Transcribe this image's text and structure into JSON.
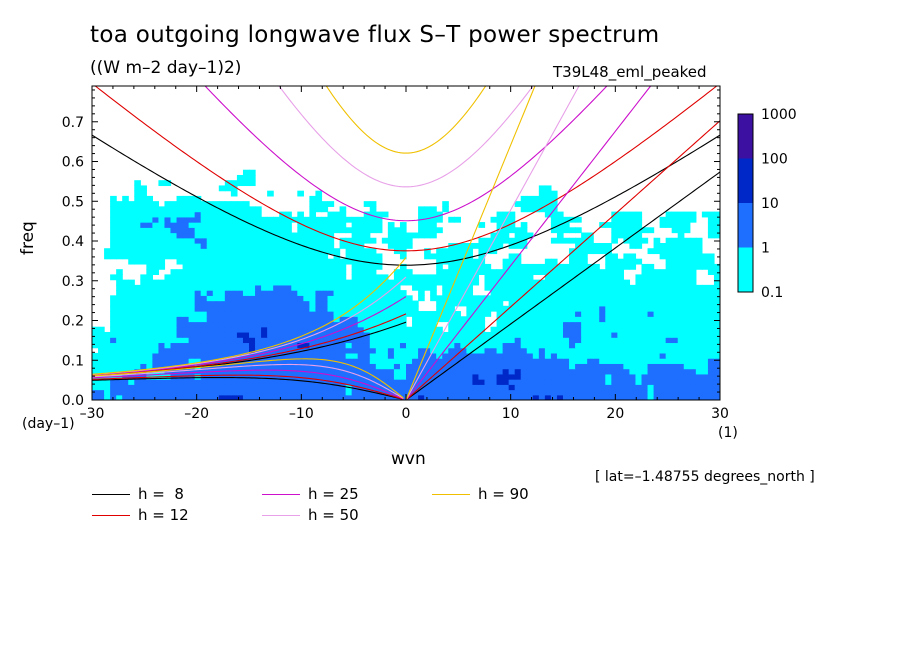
{
  "title": "toa outgoing longwave flux S–T power spectrum",
  "subtitle": "((W m–2 day–1)2)",
  "dataset": "T39L48_eml_peaked",
  "annotation": "[ lat=–1.48755 degrees_north ]",
  "chart_data": {
    "type": "heatmap",
    "xlabel": "wvn",
    "ylabel": "freq",
    "x_unit": "(1)",
    "y_unit": "(day–1)",
    "xlim": [
      -30,
      30
    ],
    "ylim": [
      0,
      0.79
    ],
    "x_ticks": [
      -30,
      -20,
      -10,
      0,
      10,
      20,
      30
    ],
    "x_tick_labels": [
      "–30",
      "–20",
      "–10",
      "0",
      "10",
      "20",
      "30"
    ],
    "y_ticks": [
      0,
      0.1,
      0.2,
      0.3,
      0.4,
      0.5,
      0.6,
      0.7
    ],
    "y_tick_labels": [
      "0.0",
      "0.1",
      "0.2",
      "0.3",
      "0.4",
      "0.5",
      "0.6",
      "0.7"
    ],
    "colorbar": {
      "levels": [
        0.1,
        1,
        10,
        100,
        1000
      ],
      "labels": [
        "0.1",
        "1",
        "10",
        "100",
        "1000"
      ],
      "colors": [
        "#00ffff",
        "#1e6fff",
        "#0028c8",
        "#3c10a0"
      ]
    },
    "background_color": "#ffffff",
    "dispersion_curves": [
      {
        "h": 8,
        "color": "#000000"
      },
      {
        "h": 12,
        "color": "#e00000"
      },
      {
        "h": 25,
        "color": "#cc10cc"
      },
      {
        "h": 50,
        "color": "#e8a0e8"
      },
      {
        "h": 90,
        "color": "#f0c000"
      }
    ],
    "legend": [
      {
        "label": "h =  8",
        "color": "#000000"
      },
      {
        "label": "h = 12",
        "color": "#e00000"
      },
      {
        "label": "h = 25",
        "color": "#cc10cc"
      },
      {
        "label": "h = 50",
        "color": "#e8a0e8"
      },
      {
        "label": "h = 90",
        "color": "#f0c000"
      }
    ]
  }
}
